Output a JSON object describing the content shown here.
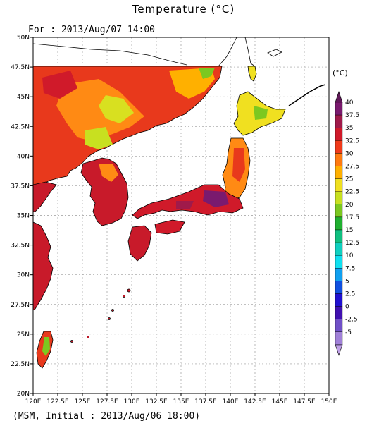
{
  "title": "Temperature (°C)",
  "subtitle": "For : 2013/Aug/07 14:00",
  "footer": "(MSM, Initial : 2013/Aug/06 18:00)",
  "unit_label": "(°C)",
  "map": {
    "lat_range": [
      20,
      50
    ],
    "lon_range": [
      120,
      150
    ],
    "lat_ticks": [
      {
        "value": 50,
        "label": "50N"
      },
      {
        "value": 47.5,
        "label": "47.5N"
      },
      {
        "value": 45,
        "label": "45N"
      },
      {
        "value": 42.5,
        "label": "42.5N"
      },
      {
        "value": 40,
        "label": "40N"
      },
      {
        "value": 37.5,
        "label": "37.5N"
      },
      {
        "value": 35,
        "label": "35N"
      },
      {
        "value": 32.5,
        "label": "32.5N"
      },
      {
        "value": 30,
        "label": "30N"
      },
      {
        "value": 27.5,
        "label": "27.5N"
      },
      {
        "value": 25,
        "label": "25N"
      },
      {
        "value": 22.5,
        "label": "22.5N"
      },
      {
        "value": 20,
        "label": "20N"
      }
    ],
    "lon_ticks": [
      {
        "value": 120,
        "label": "120E"
      },
      {
        "value": 122.5,
        "label": "122.5E"
      },
      {
        "value": 125,
        "label": "125E"
      },
      {
        "value": 127.5,
        "label": "127.5E"
      },
      {
        "value": 130,
        "label": "130E"
      },
      {
        "value": 132.5,
        "label": "132.5E"
      },
      {
        "value": 135,
        "label": "135E"
      },
      {
        "value": 137.5,
        "label": "137.5E"
      },
      {
        "value": 140,
        "label": "140E"
      },
      {
        "value": 142.5,
        "label": "142.5E"
      },
      {
        "value": 145,
        "label": "145E"
      },
      {
        "value": 147.5,
        "label": "147.5E"
      },
      {
        "value": 150,
        "label": "150E"
      }
    ],
    "data_north_limit_lat": 47.5
  },
  "colorbar": {
    "bins": [
      {
        "label": "40",
        "color": "#7a1a6e"
      },
      {
        "label": "37.5",
        "color": "#a01a4a"
      },
      {
        "label": "35",
        "color": "#d01a2a"
      },
      {
        "label": "32.5",
        "color": "#f03a1a"
      },
      {
        "label": "30",
        "color": "#ff7a10"
      },
      {
        "label": "27.5",
        "color": "#ffb000"
      },
      {
        "label": "25",
        "color": "#f0e020"
      },
      {
        "label": "22.5",
        "color": "#c8e020"
      },
      {
        "label": "20",
        "color": "#7cc820"
      },
      {
        "label": "17.5",
        "color": "#20b030"
      },
      {
        "label": "15",
        "color": "#10c080"
      },
      {
        "label": "12.5",
        "color": "#10d0c0"
      },
      {
        "label": "10",
        "color": "#10e0f0"
      },
      {
        "label": "7.5",
        "color": "#10a0f0"
      },
      {
        "label": "5",
        "color": "#1050e0"
      },
      {
        "label": "2.5",
        "color": "#2010d0"
      },
      {
        "label": "0",
        "color": "#4010b0"
      },
      {
        "label": "-2.5",
        "color": "#7050c8"
      },
      {
        "label": "-5",
        "color": "#a080d8"
      }
    ],
    "top_arrow_color": "#601858",
    "bottom_arrow_color": "#c0a0e8"
  }
}
